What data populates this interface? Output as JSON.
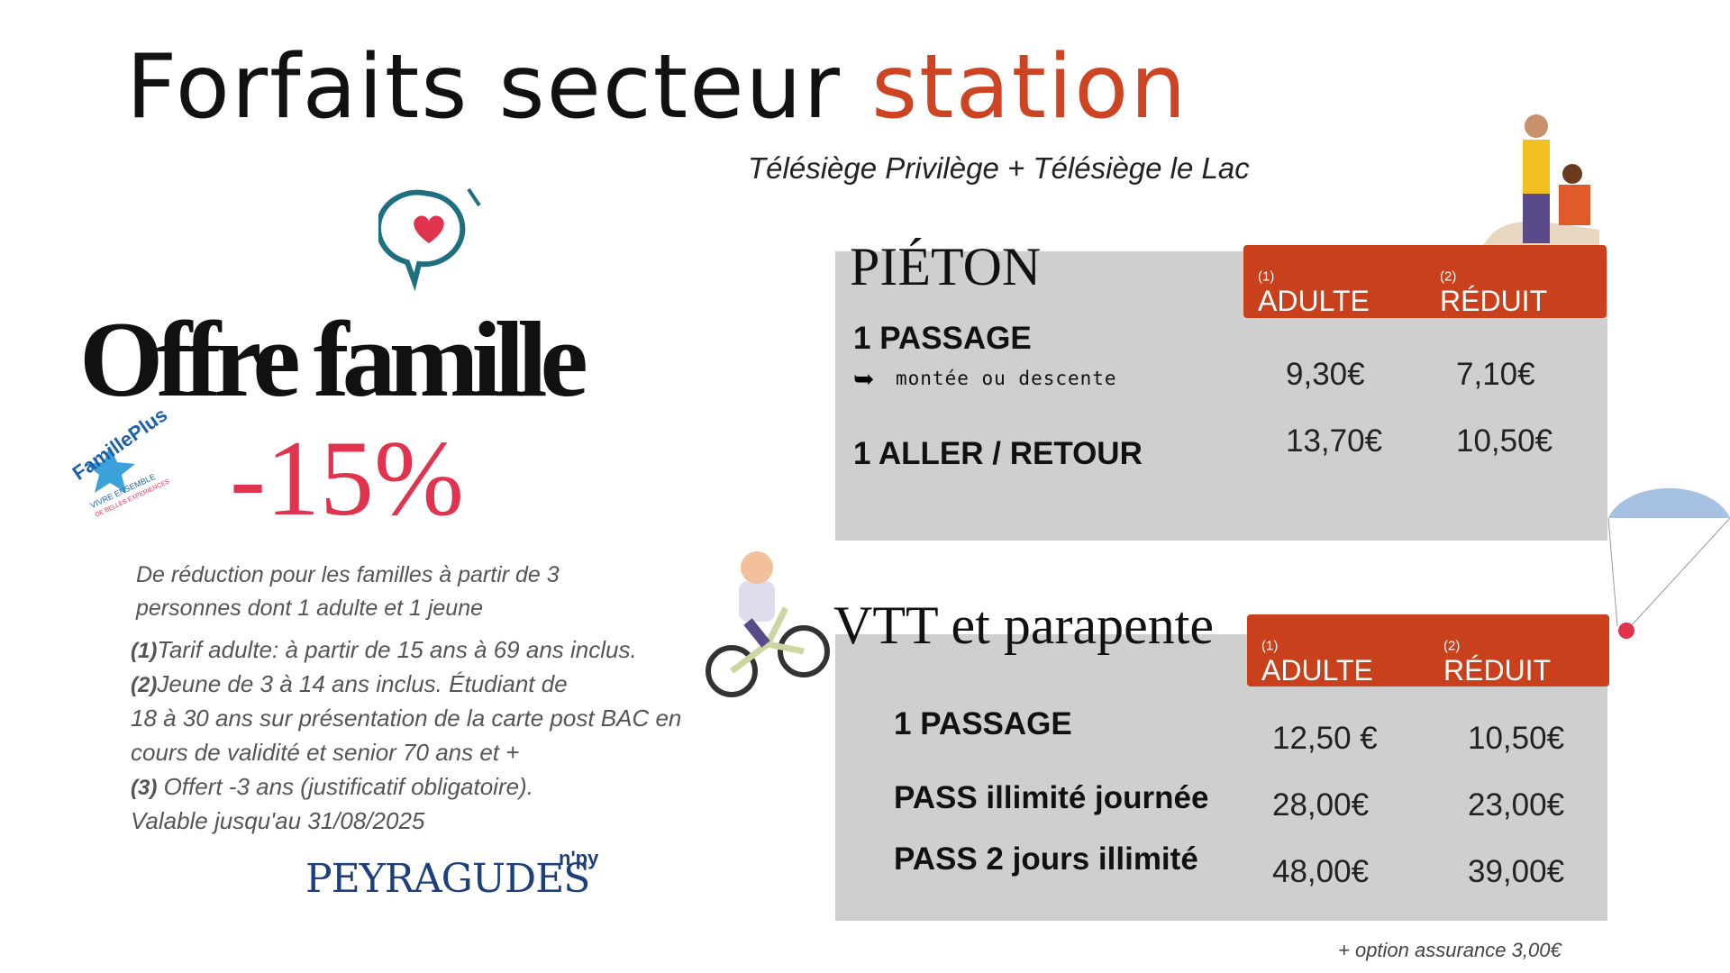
{
  "header": {
    "title": "Forfaits secteur",
    "title_accent": "station",
    "subtitle": "Télésiège Privilège + Télésiège le Lac"
  },
  "offer": {
    "title": "Offre famille",
    "discount": "-15%",
    "logo": {
      "name": "FamillePlus",
      "tagline": "VIVRE ENSEMBLE",
      "tagline2": "DE BELLES EXPERIENCES"
    },
    "description": [
      "De réduction pour les familles à partir de 3",
      "personnes dont 1 adulte et 1 jeune"
    ],
    "notes": [
      {
        "mark": "(1)",
        "text": "Tarif adulte: à partir de 15 ans à 69 ans inclus."
      },
      {
        "mark": "(2)",
        "text": "Jeune de 3 à 14 ans inclus. Étudiant de"
      },
      {
        "mark": null,
        "text": "18 à 30 ans sur présentation de la carte post BAC en"
      },
      {
        "mark": null,
        "text": "cours de validité et senior 70 ans et +"
      },
      {
        "mark": "(3)",
        "text": " Offert -3 ans (justificatif obligatoire)."
      },
      {
        "mark": null,
        "text": "Valable jusqu'au 31/08/2025"
      }
    ],
    "brand": {
      "name": "PEYRAGUDES",
      "suffix": "n'py"
    }
  },
  "tables": [
    {
      "title": "PIÉTON",
      "columns": [
        {
          "label": "ADULTE",
          "note": "(1)"
        },
        {
          "label": "RÉDUIT",
          "note": "(2)"
        }
      ],
      "rows": [
        {
          "label": "1 PASSAGE",
          "sublabel": "montée ou descente",
          "prices": [
            "9,30€",
            "7,10€"
          ]
        },
        {
          "label": "1 ALLER / RETOUR",
          "prices": [
            "13,70€",
            "10,50€"
          ]
        }
      ]
    },
    {
      "title": "VTT et parapente",
      "columns": [
        {
          "label": "ADULTE",
          "note": "(1)"
        },
        {
          "label": "RÉDUIT",
          "note": "(2)"
        }
      ],
      "rows": [
        {
          "label": "1 PASSAGE",
          "prices": [
            "12,50 €",
            "10,50€"
          ]
        },
        {
          "label": "PASS illimité journée",
          "prices": [
            "28,00€",
            "23,00€"
          ]
        },
        {
          "label": "PASS 2 jours illimité",
          "prices": [
            "48,00€",
            "39,00€"
          ]
        }
      ]
    }
  ],
  "footnote": "+ option assurance 3,00€"
}
